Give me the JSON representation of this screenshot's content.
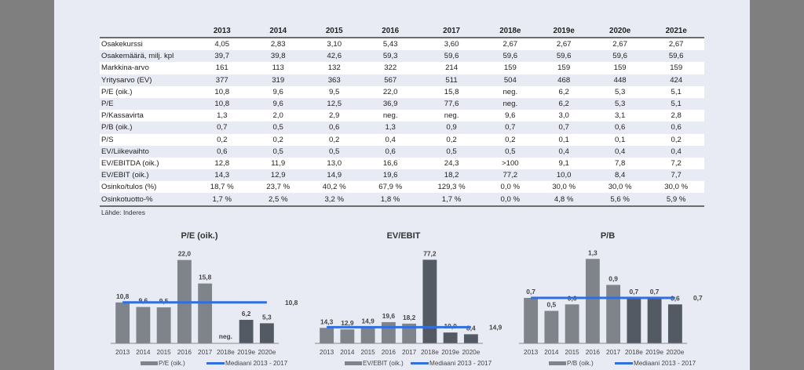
{
  "table": {
    "columns": [
      "",
      "2013",
      "2014",
      "2015",
      "2016",
      "2017",
      "2018e",
      "2019e",
      "2020e",
      "2021e"
    ],
    "rows": [
      {
        "label": "Osakekurssi",
        "values": [
          "4,05",
          "2,83",
          "3,10",
          "5,43",
          "3,60",
          "2,67",
          "2,67",
          "2,67",
          "2,67"
        ]
      },
      {
        "label": "Osakemäärä, milj. kpl",
        "values": [
          "39,7",
          "39,8",
          "42,6",
          "59,3",
          "59,6",
          "59,6",
          "59,6",
          "59,6",
          "59,6"
        ]
      },
      {
        "label": "Markkina-arvo",
        "values": [
          "161",
          "113",
          "132",
          "322",
          "214",
          "159",
          "159",
          "159",
          "159"
        ]
      },
      {
        "label": "Yritysarvo (EV)",
        "values": [
          "377",
          "319",
          "363",
          "567",
          "511",
          "504",
          "468",
          "448",
          "424"
        ]
      },
      {
        "label": "P/E (oik.)",
        "values": [
          "10,8",
          "9,6",
          "9,5",
          "22,0",
          "15,8",
          "neg.",
          "6,2",
          "5,3",
          "5,1"
        ]
      },
      {
        "label": "P/E",
        "values": [
          "10,8",
          "9,6",
          "12,5",
          "36,9",
          "77,6",
          "neg.",
          "6,2",
          "5,3",
          "5,1"
        ]
      },
      {
        "label": "P/Kassavirta",
        "values": [
          "1,3",
          "2,0",
          "2,9",
          "neg.",
          "neg.",
          "9,6",
          "3,0",
          "3,1",
          "2,8"
        ]
      },
      {
        "label": "P/B (oik.)",
        "values": [
          "0,7",
          "0,5",
          "0,6",
          "1,3",
          "0,9",
          "0,7",
          "0,7",
          "0,6",
          "0,6"
        ]
      },
      {
        "label": "P/S",
        "values": [
          "0,2",
          "0,2",
          "0,2",
          "0,4",
          "0,2",
          "0,2",
          "0,1",
          "0,1",
          "0,2"
        ]
      },
      {
        "label": "EV/Liikevaihto",
        "values": [
          "0,6",
          "0,5",
          "0,5",
          "0,6",
          "0,5",
          "0,5",
          "0,4",
          "0,4",
          "0,4"
        ]
      },
      {
        "label": "EV/EBITDA (oik.)",
        "values": [
          "12,8",
          "11,9",
          "13,0",
          "16,6",
          "24,3",
          ">100",
          "9,1",
          "7,8",
          "7,2"
        ]
      },
      {
        "label": "EV/EBIT (oik.)",
        "values": [
          "14,3",
          "12,9",
          "14,9",
          "19,6",
          "18,2",
          "77,2",
          "10,0",
          "8,4",
          "7,7"
        ]
      },
      {
        "label": "Osinko/tulos (%)",
        "values": [
          "18,7 %",
          "23,7 %",
          "40,2 %",
          "67,9 %",
          "129,3 %",
          "0,0 %",
          "30,0 %",
          "30,0 %",
          "30,0 %"
        ]
      },
      {
        "label": "Osinkotuotto-%",
        "values": [
          "1,7 %",
          "2,5 %",
          "3,2 %",
          "1,8 %",
          "1,7 %",
          "0,0 %",
          "4,8 %",
          "5,6 %",
          "5,9 %"
        ]
      }
    ],
    "source": "Lähde: Inderes"
  },
  "colors": {
    "actual_bar": "#7e848a",
    "estimate_bar": "#545a63",
    "median_line": "#2f6fdf",
    "page_bg": "#e8ebf3",
    "outer_bg": "#7f7f7f"
  },
  "chart_data": [
    {
      "type": "bar",
      "title": "P/E (oik.)",
      "categories": [
        "2013",
        "2014",
        "2015",
        "2016",
        "2017",
        "2018e",
        "2019e",
        "2020e"
      ],
      "series": [
        {
          "name": "P/E (oik.)",
          "values": [
            10.8,
            9.6,
            9.5,
            22.0,
            15.8,
            null,
            6.2,
            5.3
          ],
          "labels": [
            "10,8",
            "9,6",
            "9,5",
            "22,0",
            "15,8",
            "neg.",
            "6,2",
            "5,3"
          ],
          "estimate_from_index": 5
        },
        {
          "name": "Mediaani 2013 - 2017",
          "type": "line",
          "value": 10.8,
          "label": "10,8"
        }
      ],
      "ylim": [
        0,
        24
      ],
      "legend": "bottom"
    },
    {
      "type": "bar",
      "title": "EV/EBIT",
      "categories": [
        "2013",
        "2014",
        "2015",
        "2016",
        "2017",
        "2018e",
        "2019e",
        "2020e"
      ],
      "series": [
        {
          "name": "EV/EBIT (oik.)",
          "values": [
            14.3,
            12.9,
            14.9,
            19.6,
            18.2,
            77.2,
            10.0,
            8.4
          ],
          "labels": [
            "14,3",
            "12,9",
            "14,9",
            "19,6",
            "18,2",
            "77,2",
            "10,0",
            "8,4"
          ],
          "estimate_from_index": 5
        },
        {
          "name": "Mediaani 2013 - 2017",
          "type": "line",
          "value": 14.9,
          "label": "14,9"
        }
      ],
      "ylim": [
        0,
        84
      ],
      "legend": "bottom"
    },
    {
      "type": "bar",
      "title": "P/B",
      "categories": [
        "2013",
        "2014",
        "2015",
        "2016",
        "2017",
        "2018e",
        "2019e",
        "2020e"
      ],
      "series": [
        {
          "name": "P/B (oik.)",
          "values": [
            0.7,
            0.5,
            0.6,
            1.3,
            0.9,
            0.7,
            0.7,
            0.6
          ],
          "labels": [
            "0,7",
            "0,5",
            "0,6",
            "1,3",
            "0,9",
            "0,7",
            "0,7",
            "0,6"
          ],
          "estimate_from_index": 5
        },
        {
          "name": "Mediaani 2013 - 2017",
          "type": "line",
          "value": 0.7,
          "label": "0,7"
        }
      ],
      "ylim": [
        0,
        1.4
      ],
      "legend": "bottom"
    }
  ]
}
